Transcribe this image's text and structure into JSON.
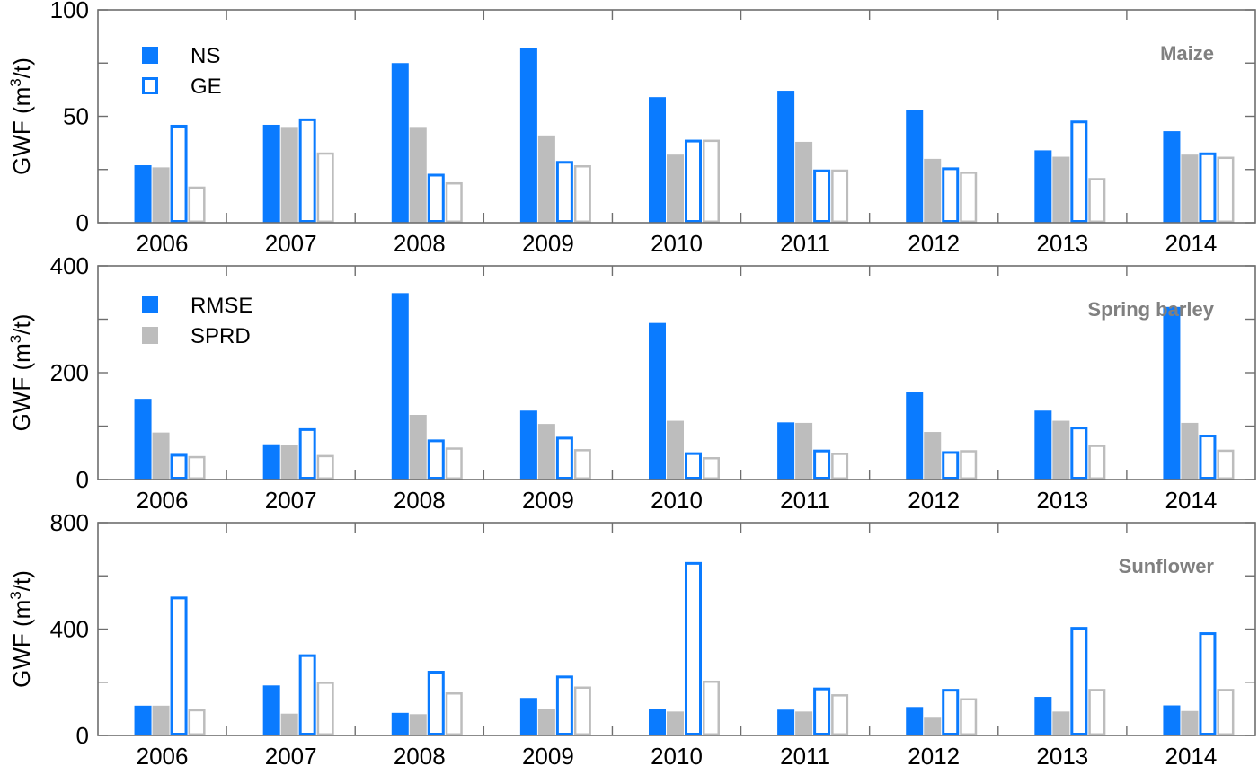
{
  "colors": {
    "blue": "#0a7bff",
    "gray": "#bdbdbd",
    "axis": "#6e6e6e",
    "crop_label": "#808080"
  },
  "legends": [
    {
      "panel": 0,
      "items": [
        {
          "label": "NS",
          "style": "blue-filled"
        },
        {
          "label": "GE",
          "style": "blue-outline"
        }
      ]
    },
    {
      "panel": 1,
      "items": [
        {
          "label": "RMSE",
          "style": "blue-filled"
        },
        {
          "label": "SPRD",
          "style": "gray-filled"
        }
      ]
    }
  ],
  "chart_data": [
    {
      "type": "bar",
      "title": "Maize",
      "ylabel": "GWF (m3/t)",
      "ylabel_parts": {
        "main": "GWF (m",
        "sup": "3",
        "tail": "/t)"
      },
      "ylim": [
        0,
        100
      ],
      "yticks": [
        0,
        50,
        100
      ],
      "categories": [
        "2006",
        "2007",
        "2008",
        "2009",
        "2010",
        "2011",
        "2012",
        "2013",
        "2014"
      ],
      "series": [
        {
          "style": "blue-filled",
          "values": [
            27,
            46,
            75,
            82,
            59,
            62,
            53,
            34,
            43
          ]
        },
        {
          "style": "gray-filled",
          "values": [
            26,
            45,
            45,
            41,
            32,
            38,
            30,
            31,
            32
          ]
        },
        {
          "style": "blue-outline",
          "values": [
            46,
            49,
            23,
            29,
            39,
            25,
            26,
            48,
            33
          ]
        },
        {
          "style": "gray-outline",
          "values": [
            17,
            33,
            19,
            27,
            39,
            25,
            24,
            21,
            31
          ]
        }
      ]
    },
    {
      "type": "bar",
      "title": "Spring barley",
      "ylabel": "GWF (m3/t)",
      "ylabel_parts": {
        "main": "GWF (m",
        "sup": "3",
        "tail": "/t)"
      },
      "ylim": [
        0,
        400
      ],
      "yticks": [
        0,
        200,
        400
      ],
      "categories": [
        "2006",
        "2007",
        "2008",
        "2009",
        "2010",
        "2011",
        "2012",
        "2013",
        "2014"
      ],
      "series": [
        {
          "style": "blue-filled",
          "values": [
            151,
            66,
            349,
            129,
            293,
            107,
            163,
            129,
            323
          ]
        },
        {
          "style": "gray-filled",
          "values": [
            88,
            65,
            121,
            104,
            110,
            106,
            89,
            110,
            106
          ]
        },
        {
          "style": "blue-outline",
          "values": [
            48,
            96,
            75,
            80,
            51,
            56,
            53,
            99,
            84
          ]
        },
        {
          "style": "gray-outline",
          "values": [
            44,
            46,
            60,
            57,
            42,
            50,
            55,
            65,
            56
          ]
        }
      ]
    },
    {
      "type": "bar",
      "title": "Sunflower",
      "ylabel": "GWF (m3/t)",
      "ylabel_parts": {
        "main": "GWF (m",
        "sup": "3",
        "tail": "/t)"
      },
      "ylim": [
        0,
        800
      ],
      "yticks": [
        0,
        400,
        800
      ],
      "categories": [
        "2006",
        "2007",
        "2008",
        "2009",
        "2010",
        "2011",
        "2012",
        "2013",
        "2014"
      ],
      "series": [
        {
          "style": "blue-filled",
          "values": [
            112,
            188,
            85,
            141,
            100,
            97,
            107,
            145,
            113
          ]
        },
        {
          "style": "gray-filled",
          "values": [
            112,
            82,
            80,
            101,
            90,
            90,
            70,
            90,
            92
          ]
        },
        {
          "style": "blue-outline",
          "values": [
            522,
            305,
            243,
            225,
            652,
            180,
            175,
            408,
            388
          ]
        },
        {
          "style": "gray-outline",
          "values": [
            99,
            202,
            162,
            184,
            206,
            155,
            140,
            175,
            175
          ]
        }
      ]
    }
  ]
}
